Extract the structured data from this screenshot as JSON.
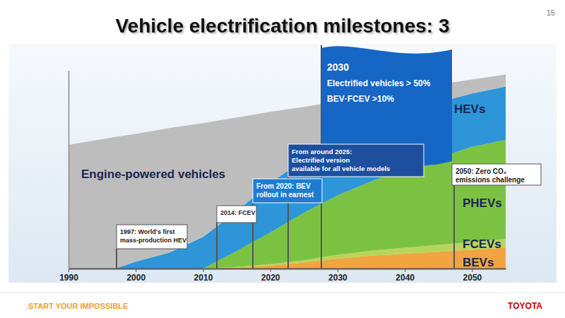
{
  "chart_data": {
    "type": "area",
    "stacked": true,
    "title": "Vehicle electrification milestones: 3",
    "x": [
      1990,
      1997,
      2000,
      2005,
      2010,
      2015,
      2020,
      2025,
      2030,
      2035,
      2040,
      2045,
      2050,
      2055
    ],
    "xlim": [
      1990,
      2055
    ],
    "xticks": [
      1990,
      2000,
      2010,
      2020,
      2030,
      2040,
      2050
    ],
    "ylim": [
      0,
      100
    ],
    "yticks": [],
    "tick_labels": "x",
    "grid": false,
    "series": [
      {
        "name": "BEVs",
        "color": "#f2a443",
        "values": [
          0,
          0,
          0,
          0,
          0,
          0.5,
          1.5,
          3,
          5,
          6.5,
          7.5,
          8.5,
          9.5,
          10.5
        ]
      },
      {
        "name": "FCEVs",
        "color": "#b9d45a",
        "values": [
          0,
          0,
          0,
          0,
          0,
          0.3,
          0.7,
          1.2,
          2,
          2.5,
          3,
          3.5,
          4,
          4.5
        ]
      },
      {
        "name": "PHEVs",
        "color": "#7cc242",
        "values": [
          0,
          0,
          0,
          0,
          0,
          8,
          16,
          24,
          30,
          35,
          40,
          44,
          48,
          50
        ]
      },
      {
        "name": "HEVs",
        "color": "#2e95d8",
        "values": [
          0,
          0,
          3.5,
          8,
          16,
          20,
          25,
          27,
          29,
          28,
          28,
          28,
          27,
          27
        ]
      },
      {
        "name": "Engine-powered vehicles",
        "color": "#bdbdbd",
        "values": [
          62.5,
          66.5,
          64.5,
          63,
          57.5,
          47.5,
          36,
          26.5,
          18.5,
          15,
          11.5,
          9,
          7,
          6
        ]
      }
    ],
    "annotations": [
      {
        "text": [
          "1997: World's first",
          "mass-production HEV"
        ]
      },
      {
        "text": [
          "2014: FCEV"
        ]
      },
      {
        "text": [
          "From 2020: BEV",
          "rollout in earnest"
        ]
      },
      {
        "text": [
          "From around 2025:",
          "Electrified version",
          "available for all vehicle models"
        ]
      },
      {
        "text": [
          "2030",
          "Electrified vehicles > 50%",
          "BEV·FCEV >10%"
        ]
      },
      {
        "text": [
          "2050: Zero CO₂",
          "emissions challenge"
        ]
      }
    ]
  },
  "page": {
    "number": 15,
    "footer": "START YOUR IMPOSSIBLE",
    "brand": "TOYOTA"
  }
}
